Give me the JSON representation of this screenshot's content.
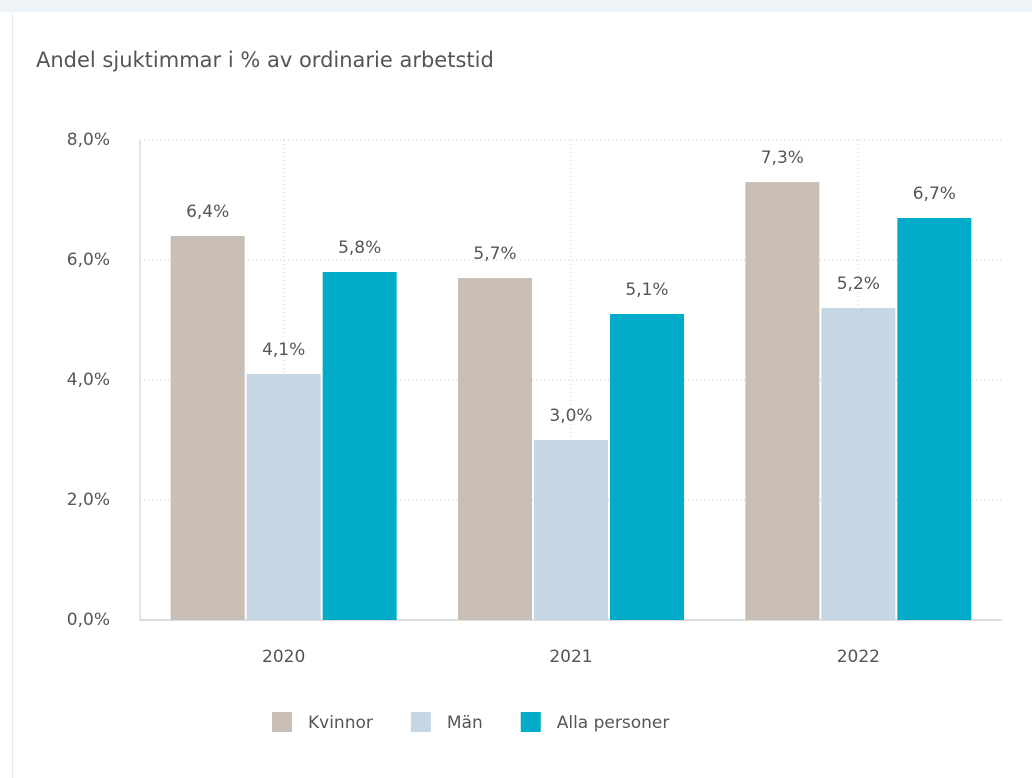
{
  "chart_data": {
    "type": "bar",
    "title": "Andel sjuktimmar i % av ordinarie arbetstid",
    "categories": [
      "2020",
      "2021",
      "2022"
    ],
    "series": [
      {
        "name": "Kvinnor",
        "color": "#c9beb4",
        "values": [
          6.4,
          5.7,
          7.3
        ],
        "value_labels": [
          "6,4%",
          "5,7%",
          "7,3%"
        ]
      },
      {
        "name": "Män",
        "color": "#c7d6e3",
        "values": [
          4.1,
          3.0,
          5.2
        ],
        "value_labels": [
          "4,1%",
          "3,0%",
          "5,2%"
        ]
      },
      {
        "name": "Alla personer",
        "color": "#00acc8",
        "values": [
          5.8,
          5.1,
          6.7
        ],
        "value_labels": [
          "5,8%",
          "5,1%",
          "6,7%"
        ]
      }
    ],
    "ylim": [
      0,
      8
    ],
    "yticks": [
      {
        "value": 0,
        "label": "0,0%"
      },
      {
        "value": 2,
        "label": "2,0%"
      },
      {
        "value": 4,
        "label": "4,0%"
      },
      {
        "value": 6,
        "label": "6,0%"
      },
      {
        "value": 8,
        "label": "8,0%"
      }
    ],
    "grid": true,
    "legend": "bottom"
  }
}
